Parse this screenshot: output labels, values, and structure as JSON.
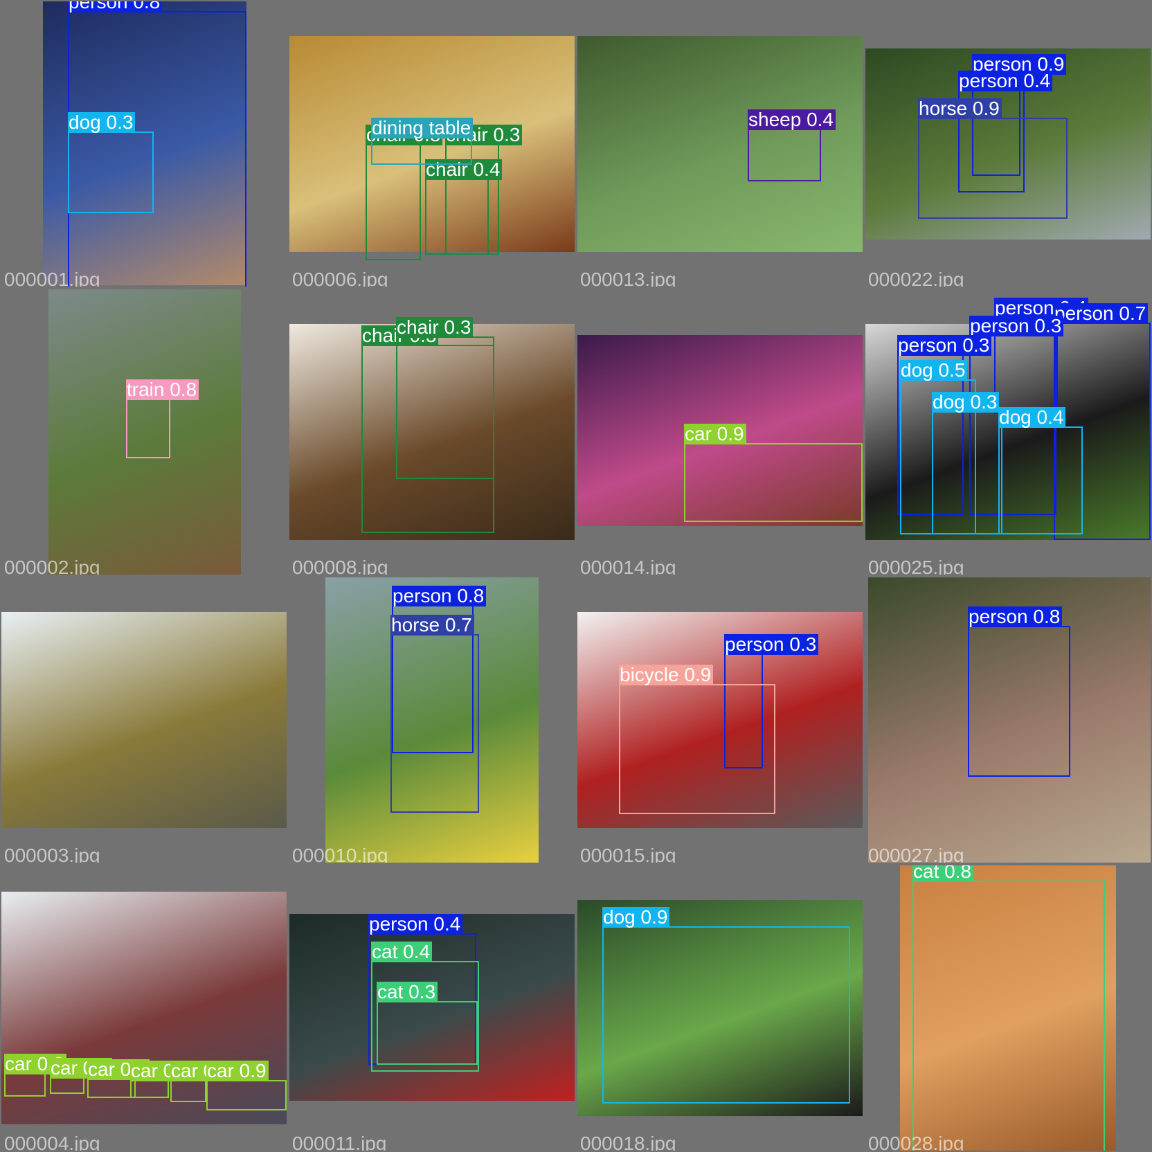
{
  "grid": {
    "title": "",
    "background": "#727272"
  },
  "class_colors": {
    "person": "#0b22e0",
    "dog": "#12b5f0",
    "chair": "#1f8a3a",
    "dining table": "#2aa5b8",
    "sheep": "#4b1aa0",
    "horse": "#2f3fa8",
    "train": "#f79ac0",
    "car": "#8fd12e",
    "bicycle": "#f6a39a",
    "cat": "#3dcf77"
  },
  "tiles": [
    {
      "filename": "000001.jpg",
      "photo": {
        "colors": [
          "#1e2b5e",
          "#3b5aa6",
          "#b38a6a"
        ]
      },
      "detections": [
        {
          "label": "person 0.8",
          "cls": "person"
        },
        {
          "label": "dog 0.3",
          "cls": "dog"
        }
      ]
    },
    {
      "filename": "000006.jpg",
      "photo": {
        "colors": [
          "#b88a34",
          "#d9c07a",
          "#7a3a1a"
        ]
      },
      "detections": [
        {
          "label": "chair 0.3",
          "cls": "chair"
        },
        {
          "label": "chair 0.3",
          "cls": "chair"
        },
        {
          "label": "chair 0.4",
          "cls": "chair"
        },
        {
          "label": "dining table",
          "cls": "dining table"
        }
      ]
    },
    {
      "filename": "000013.jpg",
      "photo": {
        "colors": [
          "#3f5a2e",
          "#6f9a5a",
          "#88b86e"
        ]
      },
      "detections": [
        {
          "label": "sheep 0.4",
          "cls": "sheep"
        }
      ]
    },
    {
      "filename": "000022.jpg",
      "photo": {
        "colors": [
          "#2c4a22",
          "#5c7a3a",
          "#a0aab0"
        ]
      },
      "detections": [
        {
          "label": "person 0.9",
          "cls": "person"
        },
        {
          "label": "person 0.4",
          "cls": "person"
        },
        {
          "label": "horse 0.9",
          "cls": "horse"
        }
      ]
    },
    {
      "filename": "000002.jpg",
      "photo": {
        "colors": [
          "#7d8a8a",
          "#5c7a3a",
          "#7a5a3a"
        ]
      },
      "detections": [
        {
          "label": "train 0.8",
          "cls": "train"
        }
      ]
    },
    {
      "filename": "000008.jpg",
      "photo": {
        "colors": [
          "#efe9e0",
          "#6a4a2a",
          "#3a2a1a"
        ]
      },
      "detections": [
        {
          "label": "chair 0.3",
          "cls": "chair"
        },
        {
          "label": "chair 0.3",
          "cls": "chair"
        }
      ]
    },
    {
      "filename": "000014.jpg",
      "photo": {
        "colors": [
          "#3a1a4a",
          "#c04a8a",
          "#7a3a2a"
        ]
      },
      "detections": [
        {
          "label": "car 0.9",
          "cls": "car"
        }
      ]
    },
    {
      "filename": "000025.jpg",
      "photo": {
        "colors": [
          "#d8d8d8",
          "#1a1a1a",
          "#4a7a2a"
        ]
      },
      "detections": [
        {
          "label": "person 0.4",
          "cls": "person"
        },
        {
          "label": "person 0.7",
          "cls": "person"
        },
        {
          "label": "person 0.3",
          "cls": "person"
        },
        {
          "label": "person 0.3",
          "cls": "person"
        },
        {
          "label": "dog 0.5",
          "cls": "dog"
        },
        {
          "label": "dog 0.3",
          "cls": "dog"
        },
        {
          "label": "dog 0.4",
          "cls": "dog"
        }
      ]
    },
    {
      "filename": "000003.jpg",
      "photo": {
        "colors": [
          "#e8f0f4",
          "#8a7a3a",
          "#5a5a4a"
        ]
      },
      "detections": []
    },
    {
      "filename": "000010.jpg",
      "photo": {
        "colors": [
          "#8aa0a8",
          "#5a8a3a",
          "#e8d040"
        ]
      },
      "detections": [
        {
          "label": "person 0.8",
          "cls": "person"
        },
        {
          "label": "horse 0.7",
          "cls": "horse"
        }
      ]
    },
    {
      "filename": "000015.jpg",
      "photo": {
        "colors": [
          "#f2f2f2",
          "#b02020",
          "#5a5a5a"
        ]
      },
      "detections": [
        {
          "label": "person 0.3",
          "cls": "person"
        },
        {
          "label": "bicycle 0.9",
          "cls": "bicycle"
        }
      ]
    },
    {
      "filename": "000027.jpg",
      "photo": {
        "colors": [
          "#3a4a2a",
          "#9a7a6a",
          "#b8a890"
        ]
      },
      "detections": [
        {
          "label": "person 0.8",
          "cls": "person"
        }
      ]
    },
    {
      "filename": "000004.jpg",
      "photo": {
        "colors": [
          "#e8eef2",
          "#7a3a3a",
          "#4a4a5a"
        ]
      },
      "detections": [
        {
          "label": "car 0.3",
          "cls": "car"
        },
        {
          "label": "car 0.3",
          "cls": "car"
        },
        {
          "label": "car 0.3",
          "cls": "car"
        },
        {
          "label": "car 0.49",
          "cls": "car"
        },
        {
          "label": "car 0.9",
          "cls": "car"
        },
        {
          "label": "car 0.9",
          "cls": "car"
        }
      ]
    },
    {
      "filename": "000011.jpg",
      "photo": {
        "colors": [
          "#1e2a2a",
          "#3a4a4a",
          "#c02020"
        ]
      },
      "detections": [
        {
          "label": "person 0.4",
          "cls": "person"
        },
        {
          "label": "cat 0.4",
          "cls": "cat"
        },
        {
          "label": "cat 0.3",
          "cls": "cat"
        }
      ]
    },
    {
      "filename": "000018.jpg",
      "photo": {
        "colors": [
          "#2a4a2a",
          "#6aa84a",
          "#1a1a1a"
        ]
      },
      "detections": [
        {
          "label": "dog 0.9",
          "cls": "dog"
        }
      ]
    },
    {
      "filename": "000028.jpg",
      "photo": {
        "colors": [
          "#c88040",
          "#e0a060",
          "#9a5a2a"
        ]
      },
      "detections": [
        {
          "label": "cat 0.8",
          "cls": "cat"
        }
      ]
    }
  ]
}
